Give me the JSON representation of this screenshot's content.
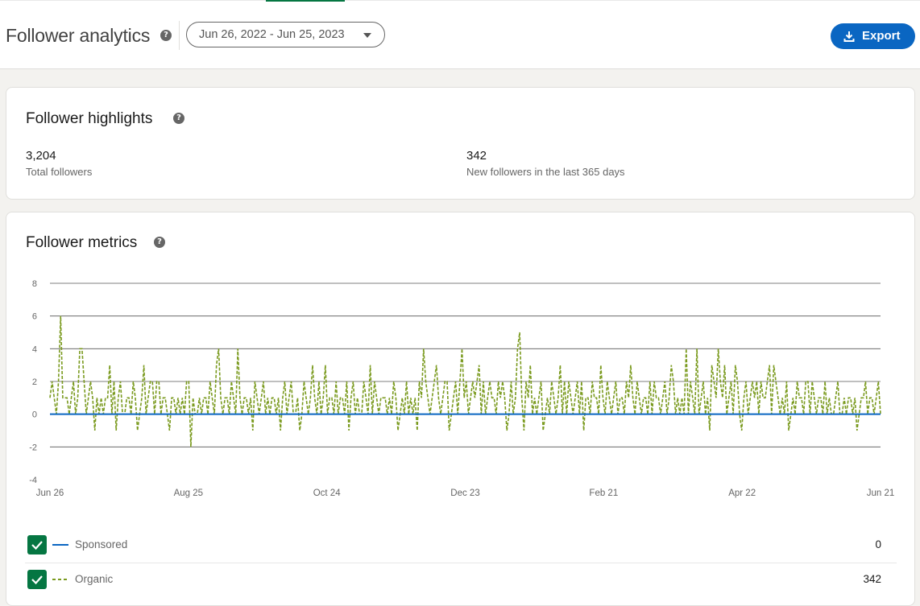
{
  "header": {
    "title": "Follower analytics",
    "date_range": "Jun 26, 2022 - Jun 25, 2023",
    "export_label": "Export"
  },
  "highlights": {
    "title": "Follower highlights",
    "stats": [
      {
        "value": "3,204",
        "label": "Total followers"
      },
      {
        "value": "342",
        "label": "New followers in the last 365 days"
      }
    ]
  },
  "metrics": {
    "title": "Follower metrics",
    "legend": [
      {
        "label": "Sponsored",
        "total": "0",
        "checked": true,
        "color": "#0a66c2"
      },
      {
        "label": "Organic",
        "total": "342",
        "checked": true,
        "color": "#7a9a1e"
      }
    ]
  },
  "colors": {
    "accent": "#0a66c2",
    "green": "#057642",
    "organic": "#7a9a1e"
  },
  "chart_data": {
    "type": "line",
    "title": "",
    "ylim": [
      -4,
      8
    ],
    "yticks": [
      8,
      6,
      4,
      2,
      0,
      -2,
      -4
    ],
    "x_tick_labels": [
      "Jun 26",
      "Aug 25",
      "Oct 24",
      "Dec 23",
      "Feb 21",
      "Apr 22",
      "Jun 21"
    ],
    "x_tick_days": [
      0,
      60,
      120,
      180,
      240,
      300,
      360
    ],
    "grid": true,
    "series": [
      {
        "name": "Sponsored",
        "style": "solid",
        "values_constant": 0
      },
      {
        "name": "Organic",
        "style": "dashed",
        "values": [
          1,
          2,
          1,
          0,
          2,
          6,
          1,
          1,
          1,
          0,
          1,
          2,
          0,
          1,
          4,
          4,
          2,
          0,
          1,
          2,
          1,
          -1,
          1,
          0,
          1,
          0,
          1,
          1,
          3,
          0,
          2,
          -1,
          1,
          2,
          0,
          0,
          1,
          1,
          0,
          2,
          1,
          -1,
          0,
          1,
          3,
          0,
          1,
          2,
          2,
          0,
          2,
          2,
          0,
          1,
          1,
          0,
          -1,
          1,
          1,
          0,
          1,
          0,
          1,
          0,
          2,
          2,
          -2,
          1,
          0,
          0,
          1,
          0,
          1,
          1,
          0,
          2,
          1,
          0,
          3,
          4,
          1,
          0,
          1,
          1,
          0,
          2,
          1,
          0,
          4,
          1,
          0,
          1,
          1,
          0,
          1,
          -1,
          2,
          1,
          0,
          1,
          2,
          0,
          1,
          0,
          1,
          1,
          0,
          1,
          -1,
          1,
          2,
          0,
          1,
          2,
          0,
          0,
          1,
          -1,
          0,
          2,
          1,
          0,
          1,
          3,
          1,
          0,
          2,
          0,
          1,
          3,
          0,
          1,
          1,
          0,
          2,
          0,
          1,
          1,
          0,
          2,
          -1,
          1,
          2,
          0,
          1,
          0,
          0,
          2,
          1,
          0,
          3,
          0,
          2,
          1,
          0,
          1,
          1,
          1,
          0,
          1,
          0,
          2,
          1,
          -1,
          0,
          1,
          0,
          2,
          0,
          1,
          0,
          1,
          -1,
          2,
          1,
          4,
          2,
          1,
          0,
          1,
          2,
          3,
          1,
          0,
          1,
          2,
          2,
          -1,
          0,
          1,
          2,
          0,
          2,
          4,
          1,
          2,
          0,
          1,
          2,
          1,
          2,
          3,
          0,
          2,
          0,
          1,
          2,
          1,
          1,
          0,
          2,
          1,
          2,
          1,
          -1,
          0,
          2,
          0,
          1,
          4,
          5,
          1,
          -1,
          2,
          1,
          3,
          0,
          1,
          0,
          1,
          2,
          -1,
          0,
          1,
          0,
          2,
          1,
          0,
          1,
          3,
          0,
          2,
          0,
          2,
          1,
          0,
          1,
          2,
          0,
          2,
          -1,
          1,
          1,
          0,
          2,
          1,
          1,
          0,
          3,
          1,
          0,
          2,
          1,
          0,
          1,
          2,
          0,
          1,
          1,
          0,
          2,
          1,
          3,
          1,
          0,
          2,
          1,
          0,
          1,
          1,
          0,
          2,
          0,
          2,
          1,
          1,
          0,
          1,
          2,
          0,
          1,
          3,
          2,
          0,
          1,
          0,
          1,
          0,
          4,
          0,
          2,
          1,
          0,
          4,
          0,
          1,
          2,
          0,
          1,
          -1,
          3,
          2,
          1,
          4,
          2,
          1,
          3,
          0,
          1,
          2,
          0,
          3,
          2,
          0,
          -1,
          1,
          2,
          0,
          1,
          2,
          1,
          2,
          0,
          2,
          1,
          1,
          2,
          3,
          0,
          3,
          2,
          1,
          0,
          1,
          0,
          2,
          -1,
          0,
          1,
          0,
          2,
          1,
          1,
          0,
          2,
          2,
          0,
          2,
          1,
          0,
          1,
          1,
          0,
          2,
          0,
          1,
          0,
          0,
          1,
          2,
          0,
          0,
          1,
          0,
          1,
          1,
          0,
          1,
          -1,
          0,
          1,
          1,
          2,
          0,
          1,
          1,
          0,
          1,
          2,
          0
        ]
      }
    ]
  }
}
